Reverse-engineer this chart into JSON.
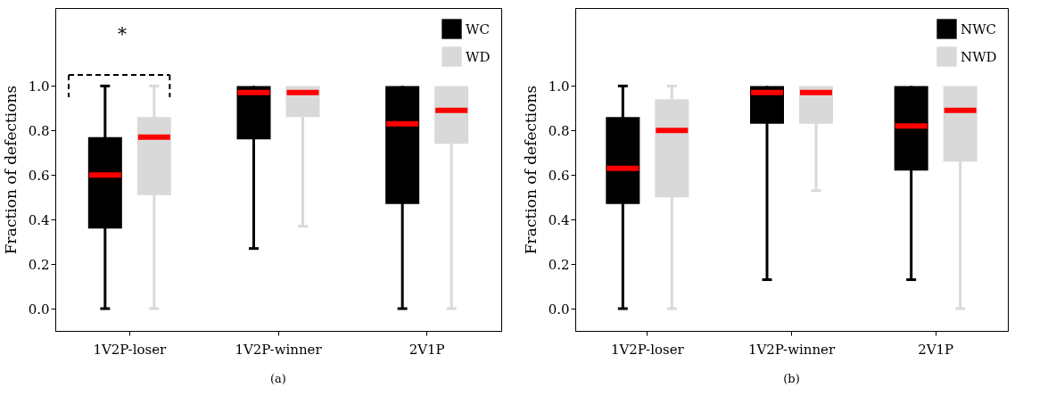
{
  "chart_data": [
    {
      "type": "box",
      "title": "(a)",
      "ylabel": "Fraction of defections",
      "categories": [
        "1V2P-loser",
        "1V2P-winner",
        "2V1P"
      ],
      "ylim": [
        -0.1,
        1.35
      ],
      "yticks": [
        {
          "value": 0,
          "label": "0.0"
        },
        {
          "value": 0.2,
          "label": "0.2"
        },
        {
          "value": 0.4,
          "label": "0.4"
        },
        {
          "value": 0.6,
          "label": "0.6"
        },
        {
          "value": 0.8,
          "label": "0.8"
        },
        {
          "value": 1,
          "label": "1.0"
        }
      ],
      "grid": false,
      "legend": "top right",
      "annotations": [
        "*"
      ],
      "series": [
        {
          "name": "WC",
          "color": "#000000",
          "boxes": [
            {
              "low": 0,
              "q1": 0.36,
              "median": 0.6,
              "q3": 0.77,
              "high": 1
            },
            {
              "low": 0.27,
              "q1": 0.76,
              "median": 0.97,
              "q3": 1,
              "high": 1
            },
            {
              "low": 0,
              "q1": 0.47,
              "median": 0.83,
              "q3": 1,
              "high": 1
            }
          ]
        },
        {
          "name": "WD",
          "color": "#d9d9d9",
          "boxes": [
            {
              "low": 0,
              "q1": 0.51,
              "median": 0.77,
              "q3": 0.86,
              "high": 1
            },
            {
              "low": 0.37,
              "q1": 0.86,
              "median": 0.97,
              "q3": 1,
              "high": 1
            },
            {
              "low": 0,
              "q1": 0.74,
              "median": 0.89,
              "q3": 1,
              "high": 1
            }
          ]
        }
      ]
    },
    {
      "type": "box",
      "title": "(b)",
      "ylabel": "Fraction of defections",
      "categories": [
        "1V2P-loser",
        "1V2P-winner",
        "2V1P"
      ],
      "ylim": [
        -0.1,
        1.35
      ],
      "yticks": [
        {
          "value": 0,
          "label": "0.0"
        },
        {
          "value": 0.2,
          "label": "0.2"
        },
        {
          "value": 0.4,
          "label": "0.4"
        },
        {
          "value": 0.6,
          "label": "0.6"
        },
        {
          "value": 0.8,
          "label": "0.8"
        },
        {
          "value": 1,
          "label": "1.0"
        }
      ],
      "grid": false,
      "legend": "top right",
      "series": [
        {
          "name": "NWC",
          "color": "#000000",
          "boxes": [
            {
              "low": 0,
              "q1": 0.47,
              "median": 0.63,
              "q3": 0.86,
              "high": 1
            },
            {
              "low": 0.13,
              "q1": 0.83,
              "median": 0.97,
              "q3": 1,
              "high": 1
            },
            {
              "low": 0.13,
              "q1": 0.62,
              "median": 0.82,
              "q3": 1,
              "high": 1
            }
          ]
        },
        {
          "name": "NWD",
          "color": "#d9d9d9",
          "boxes": [
            {
              "low": 0,
              "q1": 0.5,
              "median": 0.8,
              "q3": 0.94,
              "high": 1
            },
            {
              "low": 0.53,
              "q1": 0.83,
              "median": 0.97,
              "q3": 1,
              "high": 1
            },
            {
              "low": 0,
              "q1": 0.66,
              "median": 0.89,
              "q3": 1,
              "high": 1
            }
          ]
        }
      ]
    }
  ]
}
